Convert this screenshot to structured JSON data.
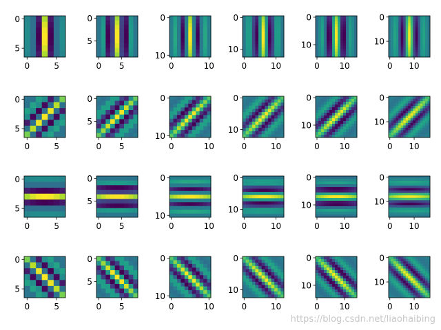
{
  "figure": {
    "watermark": "https://blog.csdn.net/liaohaibing"
  },
  "colors": {
    "background": "#ffffff",
    "axis": "#000000",
    "colormap": "viridis"
  },
  "chart_data": {
    "type": "heatmap",
    "title": "",
    "grid": false,
    "rows": 4,
    "columns": 6,
    "kernel_sizes": [
      7,
      9,
      11,
      13,
      15,
      17
    ],
    "orientations_deg": [
      0,
      45,
      90,
      135
    ],
    "x_tick_labels": [
      [
        "0",
        "5"
      ],
      [
        "0",
        "5"
      ],
      [
        "0",
        "10"
      ],
      [
        "0",
        "10"
      ],
      [
        "0",
        "10"
      ],
      [
        "0",
        "10"
      ]
    ],
    "y_tick_labels": [
      [
        "0",
        "5"
      ],
      [
        "0",
        "5"
      ],
      [
        "0",
        "10"
      ],
      [
        "0",
        "10"
      ],
      [
        "0",
        "10"
      ],
      [
        "0",
        "10"
      ]
    ]
  }
}
